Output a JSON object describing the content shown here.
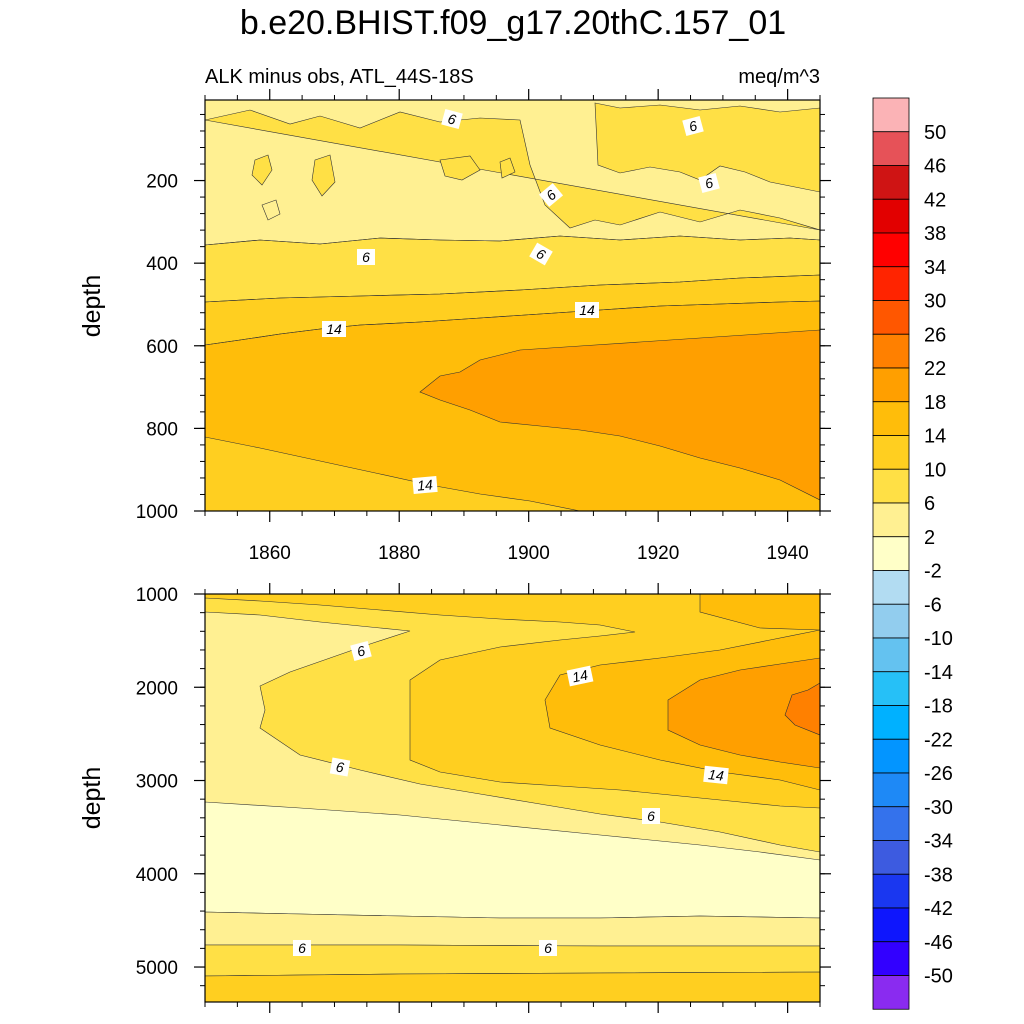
{
  "chart_data": {
    "type": "heatmap",
    "title": "b.e20.BHIST.f09_g17.20thC.157_01",
    "subtitle_left": "ALK minus obs, ATL_44S-18S",
    "subtitle_right": "meq/m^3",
    "colorbar": {
      "labels": [
        "50",
        "46",
        "42",
        "38",
        "34",
        "30",
        "26",
        "22",
        "18",
        "14",
        "10",
        "6",
        "2",
        "-2",
        "-6",
        "-10",
        "-14",
        "-18",
        "-22",
        "-26",
        "-30",
        "-34",
        "-38",
        "-42",
        "-46",
        "-50"
      ],
      "colors": [
        "#fbb3b6",
        "#e65258",
        "#cf1414",
        "#e20000",
        "#ff0000",
        "#ff2400",
        "#ff5700",
        "#ff8000",
        "#ff9f00",
        "#ffbd0a",
        "#ffcf20",
        "#ffe045",
        "#fff092",
        "#ffffc8",
        "#b2dcf2",
        "#92cdee",
        "#64c2f0",
        "#26c0f7",
        "#00b1ff",
        "#0395ff",
        "#1e89f6",
        "#3472ec",
        "#3d5be0",
        "#1a37f0",
        "#0e16fd",
        "#3200ff",
        "#8a2bf0"
      ]
    },
    "panels": [
      {
        "ylabel": "depth",
        "xticks": [
          "1860",
          "1880",
          "1900",
          "1920",
          "1940"
        ],
        "yticks": [
          "200",
          "400",
          "600",
          "800",
          "1000"
        ],
        "xlim": [
          1850,
          1945
        ],
        "ylim": [
          1000,
          5
        ],
        "contour_labels": [
          "6",
          "6",
          "6",
          "6",
          "6",
          "6",
          "14",
          "14",
          "14"
        ]
      },
      {
        "ylabel": "depth",
        "xticks": [],
        "yticks": [
          "1000",
          "2000",
          "3000",
          "4000",
          "5000"
        ],
        "xlim": [
          1850,
          1945
        ],
        "ylim": [
          5375,
          1000
        ],
        "contour_labels": [
          "6",
          "14",
          "6",
          "14",
          "6",
          "6",
          "6"
        ]
      }
    ]
  }
}
